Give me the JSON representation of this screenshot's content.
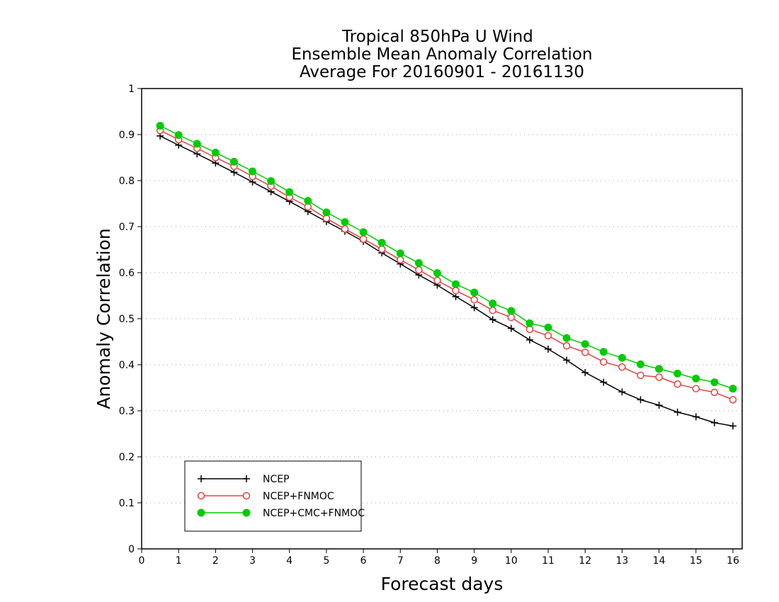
{
  "chart_data": {
    "type": "line",
    "title": [
      "Tropical 850hPa U Wind",
      "Ensemble Mean Anomaly Correlation",
      "Average For 20160901 - 20161130"
    ],
    "xlabel": "Forecast days",
    "ylabel": "Anomaly Correlation",
    "xlim": [
      0,
      16.25
    ],
    "ylim": [
      0,
      1
    ],
    "x_ticks": [
      0,
      1,
      2,
      3,
      4,
      5,
      6,
      7,
      8,
      9,
      10,
      11,
      12,
      13,
      14,
      15,
      16
    ],
    "y_ticks": [
      0,
      0.1,
      0.2,
      0.3,
      0.4,
      0.5,
      0.6,
      0.7,
      0.8,
      0.9,
      1
    ],
    "y_tick_labels": [
      "0",
      "0.1",
      "0.2",
      "0.3",
      "0.4",
      "0.5",
      "0.6",
      "0.7",
      "0.8",
      "0.9",
      "1"
    ],
    "grid": "horizontal dotted",
    "legend_position": "bottom-left",
    "x": [
      0.5,
      1,
      1.5,
      2,
      2.5,
      3,
      3.5,
      4,
      4.5,
      5,
      5.5,
      6,
      6.5,
      7,
      7.5,
      8,
      8.5,
      9,
      9.5,
      10,
      10.5,
      11,
      11.5,
      12,
      12.5,
      13,
      13.5,
      14,
      14.5,
      15,
      15.5,
      16
    ],
    "series": [
      {
        "name": "NCEP",
        "color": "#000000",
        "marker": "plus",
        "values": [
          0.897,
          0.877,
          0.858,
          0.838,
          0.818,
          0.797,
          0.776,
          0.755,
          0.733,
          0.711,
          0.69,
          0.668,
          0.643,
          0.619,
          0.595,
          0.573,
          0.548,
          0.524,
          0.498,
          0.479,
          0.454,
          0.434,
          0.41,
          0.383,
          0.362,
          0.341,
          0.324,
          0.312,
          0.297,
          0.287,
          0.274,
          0.267
        ]
      },
      {
        "name": "NCEP+FNMOC",
        "color": "#e84040",
        "marker": "open-circle",
        "values": [
          0.909,
          0.889,
          0.87,
          0.85,
          0.831,
          0.809,
          0.788,
          0.764,
          0.743,
          0.718,
          0.695,
          0.673,
          0.651,
          0.628,
          0.606,
          0.583,
          0.561,
          0.541,
          0.518,
          0.503,
          0.477,
          0.463,
          0.441,
          0.427,
          0.406,
          0.395,
          0.377,
          0.373,
          0.358,
          0.348,
          0.34,
          0.324
        ]
      },
      {
        "name": "NCEP+CMC+FNMOC",
        "color": "#00cc00",
        "marker": "filled-circle",
        "values": [
          0.919,
          0.899,
          0.88,
          0.861,
          0.841,
          0.82,
          0.799,
          0.775,
          0.756,
          0.731,
          0.71,
          0.688,
          0.665,
          0.642,
          0.621,
          0.599,
          0.575,
          0.557,
          0.533,
          0.517,
          0.49,
          0.481,
          0.458,
          0.445,
          0.428,
          0.415,
          0.401,
          0.391,
          0.381,
          0.37,
          0.362,
          0.348
        ]
      }
    ]
  }
}
